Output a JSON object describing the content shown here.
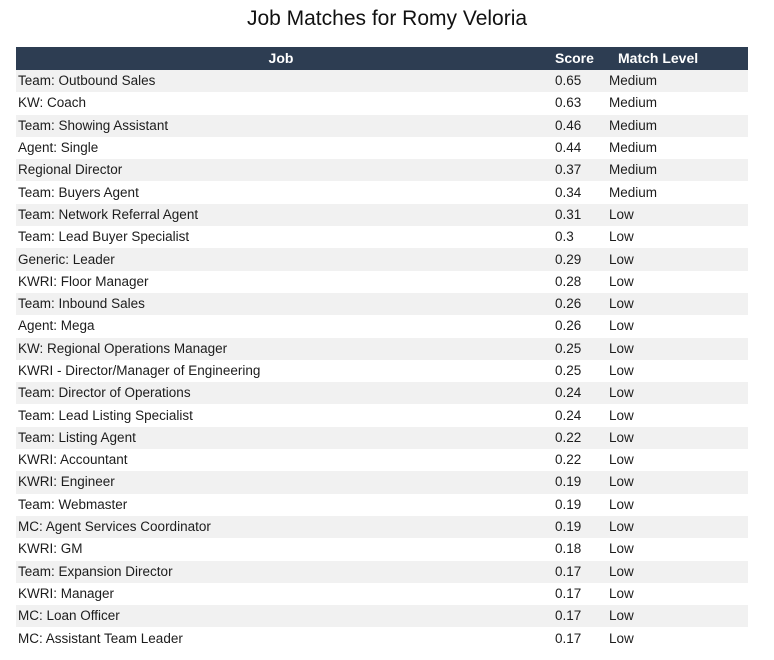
{
  "title": "Job Matches for Romy Veloria",
  "columns": {
    "job": "Job",
    "score": "Score",
    "level": "Match Level"
  },
  "rows": [
    {
      "job": "Team: Outbound Sales",
      "score": "0.65",
      "level": "Medium"
    },
    {
      "job": "KW: Coach",
      "score": "0.63",
      "level": "Medium"
    },
    {
      "job": "Team: Showing Assistant",
      "score": "0.46",
      "level": "Medium"
    },
    {
      "job": "Agent: Single",
      "score": "0.44",
      "level": "Medium"
    },
    {
      "job": "Regional Director",
      "score": "0.37",
      "level": "Medium"
    },
    {
      "job": "Team: Buyers Agent",
      "score": "0.34",
      "level": "Medium"
    },
    {
      "job": "Team: Network Referral Agent",
      "score": "0.31",
      "level": "Low"
    },
    {
      "job": "Team: Lead Buyer Specialist",
      "score": "0.3",
      "level": "Low"
    },
    {
      "job": "Generic: Leader",
      "score": "0.29",
      "level": "Low"
    },
    {
      "job": "KWRI: Floor Manager",
      "score": "0.28",
      "level": "Low"
    },
    {
      "job": "Team: Inbound Sales",
      "score": "0.26",
      "level": "Low"
    },
    {
      "job": "Agent: Mega",
      "score": "0.26",
      "level": "Low"
    },
    {
      "job": "KW: Regional Operations Manager",
      "score": "0.25",
      "level": "Low"
    },
    {
      "job": "KWRI - Director/Manager of Engineering",
      "score": "0.25",
      "level": "Low"
    },
    {
      "job": "Team: Director of Operations",
      "score": "0.24",
      "level": "Low"
    },
    {
      "job": "Team: Lead Listing Specialist",
      "score": "0.24",
      "level": "Low"
    },
    {
      "job": "Team: Listing Agent",
      "score": "0.22",
      "level": "Low"
    },
    {
      "job": "KWRI: Accountant",
      "score": "0.22",
      "level": "Low"
    },
    {
      "job": "KWRI: Engineer",
      "score": "0.19",
      "level": "Low"
    },
    {
      "job": "Team: Webmaster",
      "score": "0.19",
      "level": "Low"
    },
    {
      "job": "MC: Agent Services Coordinator",
      "score": "0.19",
      "level": "Low"
    },
    {
      "job": "KWRI: GM",
      "score": "0.18",
      "level": "Low"
    },
    {
      "job": "Team: Expansion Director",
      "score": "0.17",
      "level": "Low"
    },
    {
      "job": "KWRI: Manager",
      "score": "0.17",
      "level": "Low"
    },
    {
      "job": "MC: Loan Officer",
      "score": "0.17",
      "level": "Low"
    },
    {
      "job": "MC: Assistant Team Leader",
      "score": "0.17",
      "level": "Low"
    }
  ],
  "colors": {
    "header_background": "#2d3d52",
    "header_text": "#ffffff",
    "row_stripe": "#f1f1f1"
  }
}
